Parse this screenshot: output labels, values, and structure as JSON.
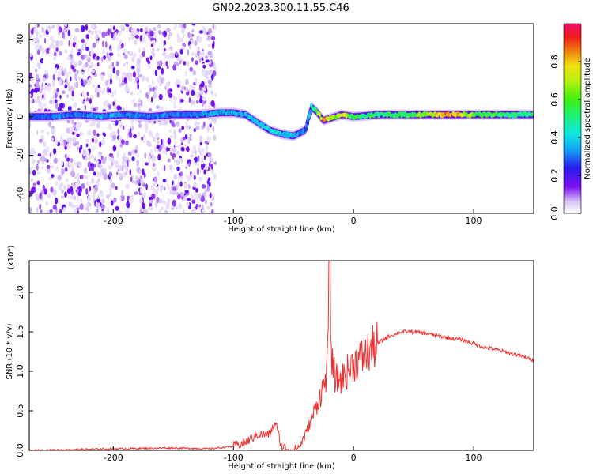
{
  "title": "GN02.2023.300.11.55.C46",
  "chart_data": [
    {
      "type": "heatmap",
      "xlabel": "Height of straight line (km)",
      "ylabel": "Frequency (Hz)",
      "xlim": [
        -270,
        150
      ],
      "ylim": [
        -50,
        48
      ],
      "x_ticks": [
        -200,
        -100,
        0,
        100
      ],
      "y_ticks": [
        -40,
        -20,
        0,
        20,
        40
      ],
      "x_tick_labels": [
        "-200",
        "-100",
        "0",
        "100"
      ],
      "y_tick_labels": [
        "-40",
        "-20",
        "0",
        "20",
        "40"
      ],
      "colorbar": {
        "label": "Normalized spectral amplitude",
        "range": [
          0,
          1
        ],
        "ticks": [
          0.0,
          0.2,
          0.4,
          0.6,
          0.8
        ],
        "tick_labels": [
          "0.0",
          "0.2",
          "0.4",
          "0.6",
          "0.8"
        ]
      },
      "ridge": {
        "x": [
          -270,
          -250,
          -230,
          -210,
          -190,
          -170,
          -150,
          -130,
          -110,
          -100,
          -90,
          -80,
          -70,
          -60,
          -50,
          -40,
          -35,
          -30,
          -25,
          -20,
          -10,
          0,
          20,
          50,
          80,
          100,
          130,
          150
        ],
        "y": [
          0,
          0,
          1,
          0,
          1,
          0,
          1,
          1,
          2,
          2,
          1,
          -3,
          -7,
          -9,
          -10,
          -7,
          5,
          2,
          -2,
          -1,
          1,
          0,
          1,
          1,
          1,
          1,
          1,
          1
        ],
        "amplitude": [
          0.25,
          0.3,
          0.3,
          0.35,
          0.3,
          0.3,
          0.3,
          0.3,
          0.35,
          0.35,
          0.35,
          0.35,
          0.4,
          0.4,
          0.35,
          0.3,
          0.4,
          0.6,
          0.8,
          0.7,
          0.7,
          0.55,
          0.5,
          0.55,
          0.85,
          0.6,
          0.5,
          0.5
        ]
      },
      "noise_region_x": [
        -270,
        -115
      ]
    },
    {
      "type": "line",
      "xlabel": "Height of straight line (km)",
      "ylabel": "SNR (10 * v/v)",
      "y_multiplier": "(x10⁴)",
      "xlim": [
        -270,
        150
      ],
      "ylim": [
        0,
        2.4
      ],
      "x_ticks": [
        -200,
        -100,
        0,
        100
      ],
      "y_ticks": [
        0.0,
        0.5,
        1.0,
        1.5,
        2.0
      ],
      "x_tick_labels": [
        "-200",
        "-100",
        "0",
        "100"
      ],
      "y_tick_labels": [
        "0.0",
        "0.5",
        "1.0",
        "1.5",
        "2.0"
      ],
      "color": "#f03030",
      "x": [
        -270,
        -200,
        -150,
        -120,
        -100,
        -90,
        -80,
        -70,
        -65,
        -60,
        -50,
        -45,
        -40,
        -35,
        -30,
        -25,
        -22,
        -20,
        -18,
        -15,
        -10,
        -5,
        0,
        5,
        10,
        20,
        30,
        40,
        50,
        60,
        70,
        80,
        90,
        100,
        110,
        120,
        130,
        140,
        150
      ],
      "y": [
        0.0,
        0.02,
        0.03,
        0.02,
        0.05,
        0.1,
        0.2,
        0.2,
        0.35,
        0.05,
        0.0,
        0.05,
        0.2,
        0.4,
        0.6,
        0.8,
        1.0,
        2.4,
        1.1,
        0.9,
        0.9,
        1.0,
        1.1,
        1.15,
        1.2,
        1.35,
        1.45,
        1.5,
        1.5,
        1.48,
        1.45,
        1.42,
        1.4,
        1.35,
        1.3,
        1.27,
        1.23,
        1.19,
        1.14
      ]
    }
  ]
}
